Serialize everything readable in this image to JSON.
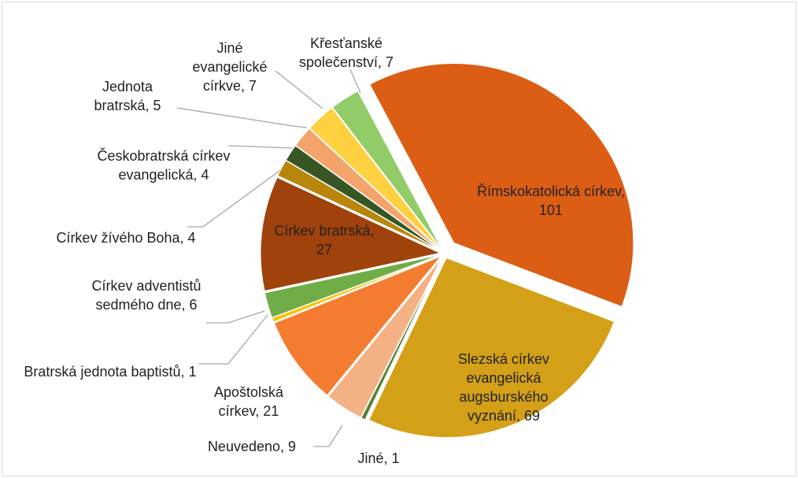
{
  "chart_data": {
    "type": "pie",
    "categories": [
      "Římskokatolická církev",
      "Slezská církev evangelická augsburského vyznání",
      "Jiné",
      "Neuvedeno",
      "Apoštolská církev",
      "Bratrská jednota baptistů",
      "Církev adventistů sedmého dne",
      "Církev bratrská",
      "Církev žívého Boha",
      "Českobratrská církev evangelická",
      "Jednota bratrská",
      "Jiné evangelické církve",
      "Křesťanské společenství"
    ],
    "values": [
      101,
      69,
      1,
      9,
      21,
      1,
      6,
      27,
      4,
      4,
      5,
      7,
      7
    ],
    "colors": [
      "#dc5d14",
      "#d4a017",
      "#548235",
      "#f4b183",
      "#f47c30",
      "#ffc000",
      "#70ad47",
      "#a0420c",
      "#b8860b",
      "#375623",
      "#f4a46a",
      "#ffd040",
      "#92cc68"
    ],
    "label_separator": ", "
  }
}
